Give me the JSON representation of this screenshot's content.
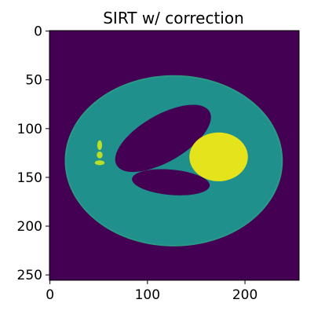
{
  "chart_data": {
    "type": "heatmap",
    "title": "SIRT w/ correction",
    "xlabel": "",
    "ylabel": "",
    "xlim": [
      0,
      255
    ],
    "ylim": [
      255,
      0
    ],
    "x_ticks": [
      0,
      100,
      200
    ],
    "y_ticks": [
      0,
      50,
      100,
      150,
      200,
      250
    ],
    "grid": false,
    "colormap": "viridis",
    "colors": {
      "background": "#440154",
      "body": "#20908c",
      "body_edge": "#2a9a86",
      "cavity": "#440154",
      "bright_blob": "#e4e31c",
      "small_spots": "#b8de29"
    },
    "regions": [
      {
        "name": "outer ellipse",
        "shape": "ellipse",
        "cx": 127,
        "cy": 133,
        "rx": 111,
        "ry": 87,
        "rotation": 0,
        "level": "mid"
      },
      {
        "name": "upper dark cavity",
        "shape": "ellipse",
        "cx": 116,
        "cy": 110,
        "rx": 55,
        "ry": 24,
        "rotation": -30,
        "level": "low"
      },
      {
        "name": "lower dark cavity",
        "shape": "ellipse",
        "cx": 124,
        "cy": 155,
        "rx": 40,
        "ry": 13,
        "rotation": 5,
        "level": "low"
      },
      {
        "name": "bright disk",
        "shape": "ellipse",
        "cx": 173,
        "cy": 129,
        "rx": 30,
        "ry": 25,
        "rotation": 0,
        "level": "high"
      },
      {
        "name": "small spot 1",
        "shape": "ellipse",
        "cx": 51,
        "cy": 117,
        "rx": 2.5,
        "ry": 5,
        "rotation": 0,
        "level": "high"
      },
      {
        "name": "small spot 2",
        "shape": "ellipse",
        "cx": 51,
        "cy": 127,
        "rx": 3,
        "ry": 3.5,
        "rotation": 0,
        "level": "high"
      },
      {
        "name": "small spot 3",
        "shape": "ellipse",
        "cx": 51,
        "cy": 135,
        "rx": 5,
        "ry": 2.5,
        "rotation": 0,
        "level": "high"
      }
    ]
  }
}
